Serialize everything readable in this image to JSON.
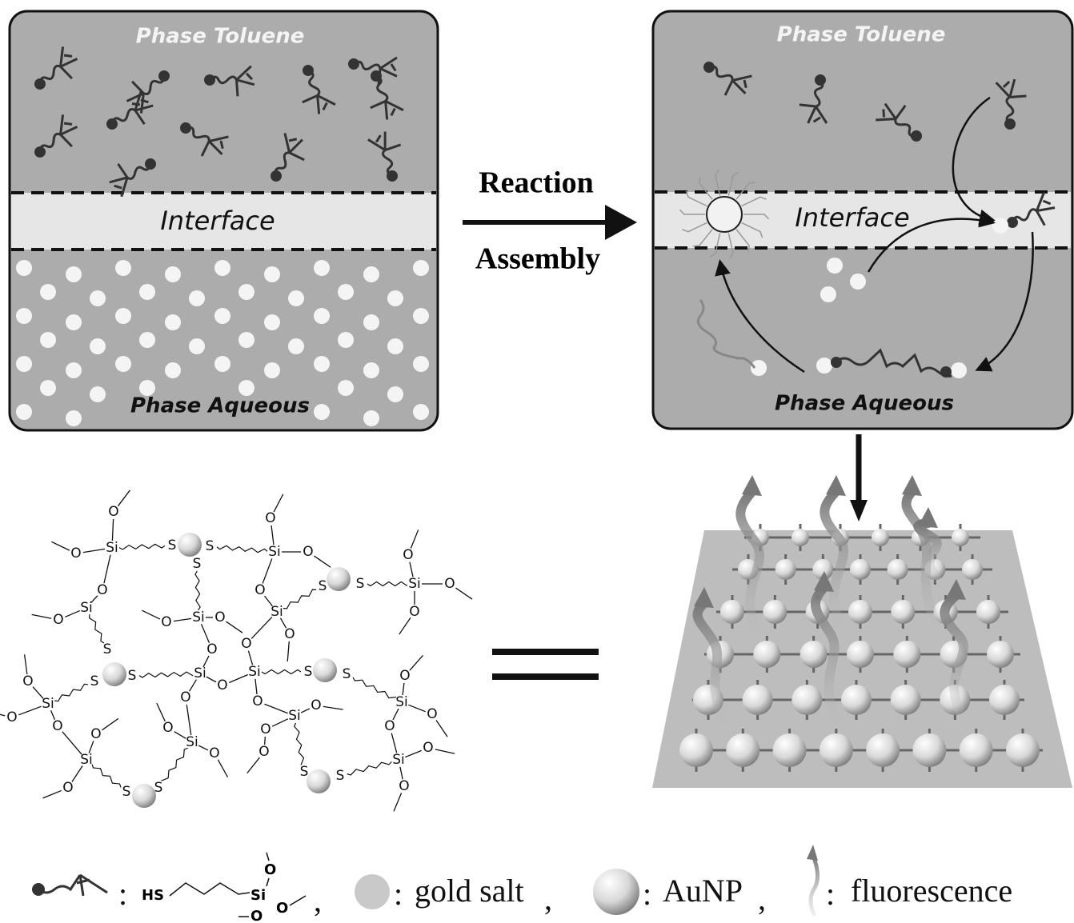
{
  "panels": [
    {
      "top_label": "Phase Toluene",
      "middle_label": "Interface",
      "bottom_label": "Phase Aqueous"
    },
    {
      "top_label": "Phase Toluene",
      "middle_label": "Interface",
      "bottom_label": "Phase Aqueous"
    }
  ],
  "arrow": {
    "top": "Reaction",
    "bottom": "Assembly"
  },
  "network": {
    "atoms": [
      "O",
      "Si",
      "O",
      "O",
      "S",
      "S",
      "Si",
      "O",
      "O",
      "O",
      "S",
      "Si",
      "O",
      "O",
      "O",
      "S",
      "S",
      "Si",
      "O",
      "O",
      "O",
      "Si",
      "O",
      "Si",
      "O",
      "S",
      "S",
      "Si",
      "O",
      "O",
      "O",
      "S",
      "Si",
      "O",
      "O",
      "Si",
      "O",
      "O",
      "S",
      "S",
      "Si",
      "O",
      "O",
      "O",
      "Si",
      "O",
      "O",
      "O",
      "S",
      "S",
      "Si",
      "O",
      "O",
      "Si",
      "O",
      "O",
      "S",
      "S",
      "Si",
      "O",
      "O"
    ]
  },
  "legend": {
    "silane": {
      "colon": ":",
      "hs": "HS",
      "si": "Si",
      "o_top": "O",
      "o_right": "O",
      "o_bottom": "O",
      "comma": ","
    },
    "gold_salt": {
      "colon": ":",
      "label": "gold salt",
      "comma": ","
    },
    "aunp": {
      "colon": ":",
      "label": "AuNP",
      "comma": ","
    },
    "fluorescence": {
      "colon": ":",
      "label": "fluorescence"
    }
  }
}
